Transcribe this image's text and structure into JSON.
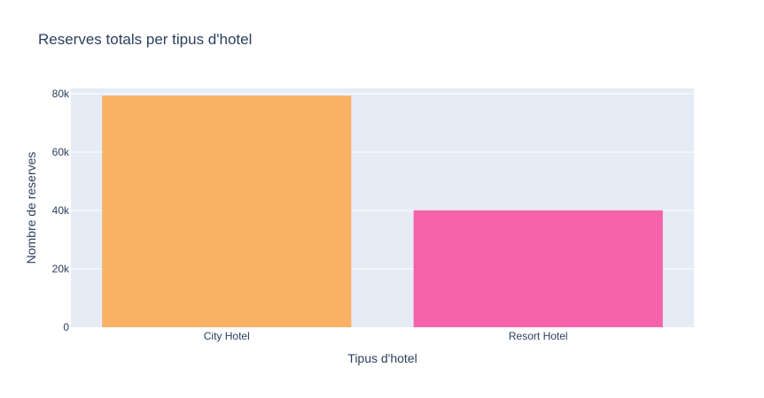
{
  "chart_data": {
    "type": "bar",
    "title": "Reserves totals per tipus d'hotel",
    "xlabel": "Tipus d'hotel",
    "ylabel": "Nombre de reserves",
    "categories": [
      "City Hotel",
      "Resort Hotel"
    ],
    "values": [
      79330,
      40060
    ],
    "ylim": [
      0,
      80000
    ],
    "yticks": [
      0,
      20000,
      40000,
      60000,
      80000
    ],
    "ytick_labels": [
      "0",
      "20k",
      "40k",
      "60k",
      "80k"
    ],
    "bar_colors": [
      "#f9b164",
      "#f763ab"
    ],
    "plot_background": "#e5ecf6",
    "grid": true,
    "legend": false
  }
}
